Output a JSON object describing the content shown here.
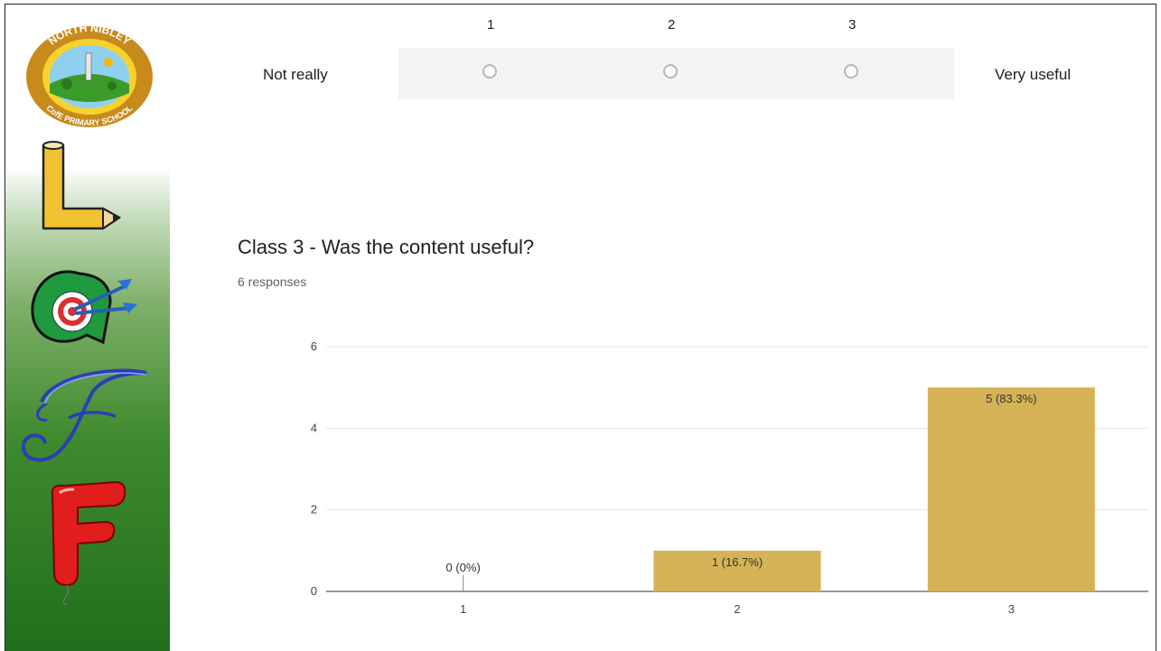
{
  "scale_question": {
    "numbers": [
      "1",
      "2",
      "3"
    ],
    "low_label": "Not really",
    "high_label": "Very useful"
  },
  "question": {
    "title": "Class 3 - Was the content useful?",
    "responses": "6 responses"
  },
  "logo_text": {
    "top": "NORTH NIBLEY",
    "bottom": "CofE PRIMARY SCHOOL"
  },
  "sidebar_letters": [
    "L",
    "a",
    "F",
    "F"
  ],
  "colors": {
    "bar": "#d6b256",
    "sidebar_green": "#2f7f24",
    "gridline": "#e6e6e6"
  },
  "chart_data": {
    "type": "bar",
    "categories": [
      "1",
      "2",
      "3"
    ],
    "values": [
      0,
      1,
      5
    ],
    "data_labels": [
      "0 (0%)",
      "1 (16.7%)",
      "5 (83.3%)"
    ],
    "yticks": [
      "0",
      "2",
      "4",
      "6"
    ],
    "ylim": [
      0,
      6
    ],
    "grid": true
  }
}
